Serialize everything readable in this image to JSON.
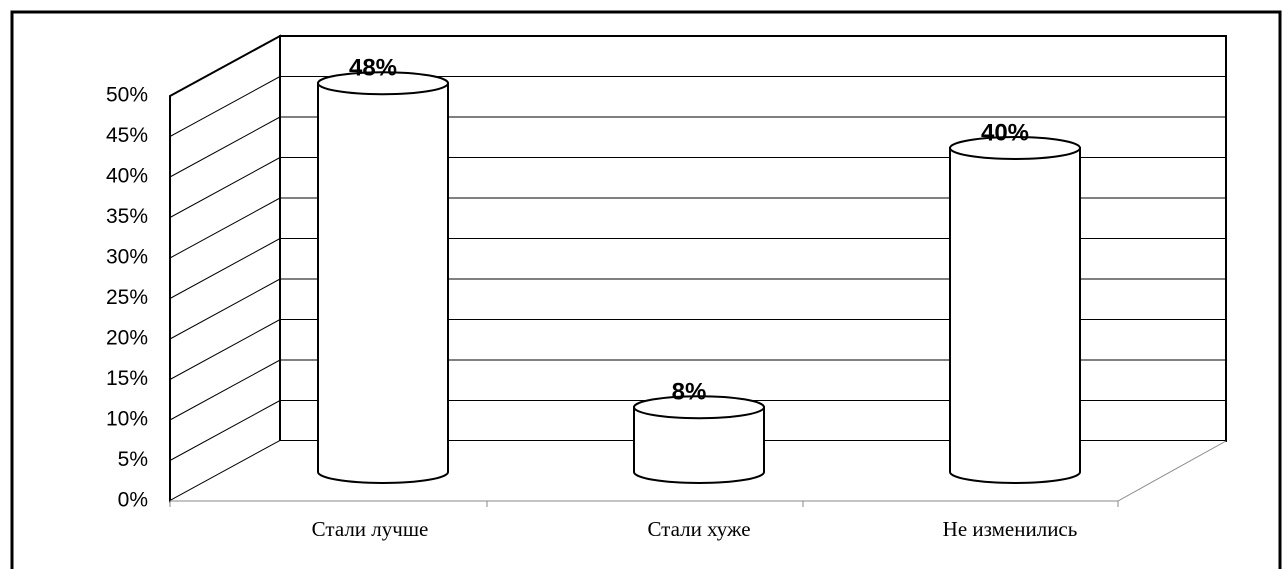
{
  "chart_data": {
    "type": "bar",
    "categories": [
      "Стали лучше",
      "Стали хуже",
      "Не изменились"
    ],
    "values": [
      48,
      8,
      40
    ],
    "value_labels": [
      "48%",
      "8%",
      "40%"
    ],
    "color": "#ffffff",
    "ylim": [
      0,
      50
    ],
    "yticks": [
      {
        "value": 0,
        "label": "0%"
      },
      {
        "value": 5,
        "label": "5%"
      },
      {
        "value": 10,
        "label": "10%"
      },
      {
        "value": 15,
        "label": "15%"
      },
      {
        "value": 20,
        "label": "20%"
      },
      {
        "value": 25,
        "label": "25%"
      },
      {
        "value": 30,
        "label": "30%"
      },
      {
        "value": 35,
        "label": "35%"
      },
      {
        "value": 40,
        "label": "40%"
      },
      {
        "value": 45,
        "label": "45%"
      },
      {
        "value": 50,
        "label": "50%"
      }
    ],
    "grid": true
  }
}
